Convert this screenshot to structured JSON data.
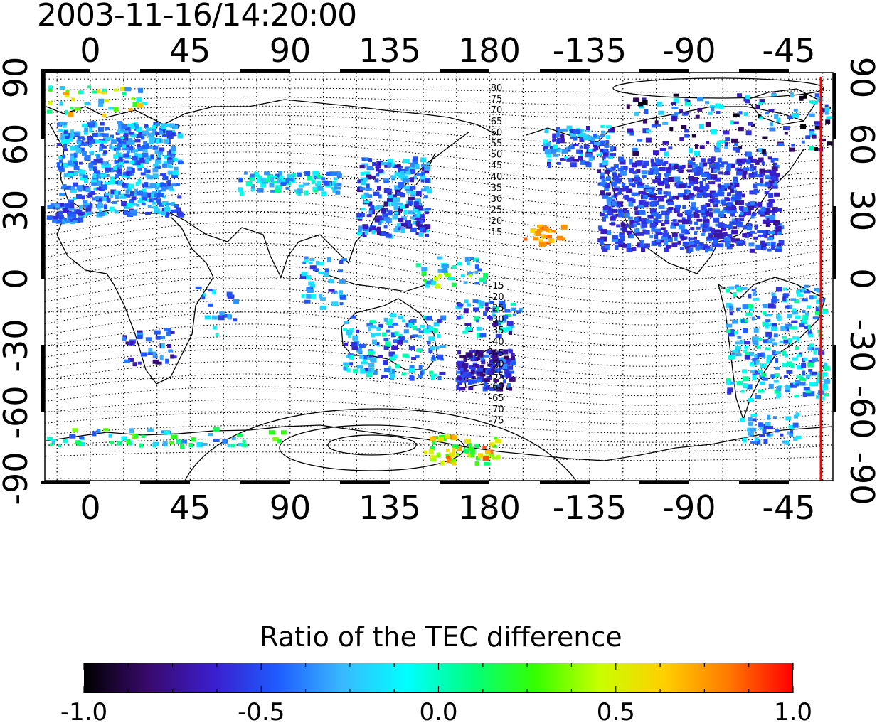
{
  "title": "2003-11-16/14:20:00",
  "map": {
    "top_lon_labels": [
      "0",
      "45",
      "90",
      "135",
      "180",
      "-135",
      "-90",
      "-45"
    ],
    "bottom_lon_labels": [
      "0",
      "45",
      "90",
      "135",
      "180",
      "-135",
      "-90",
      "-45"
    ],
    "left_lat_labels": [
      "90",
      "60",
      "30",
      "0",
      "-30",
      "-60",
      "-90"
    ],
    "right_lat_labels": [
      "90",
      "60",
      "30",
      "0",
      "-30",
      "-60",
      "-90"
    ],
    "mlat_labels_north": [
      "80",
      "75",
      "70",
      "65",
      "60",
      "55",
      "50",
      "45",
      "40",
      "35",
      "30",
      "25",
      "20",
      "15"
    ],
    "mlat_labels_south": [
      "-15",
      "-20",
      "-25",
      "-30",
      "-35",
      "-40",
      "-45",
      "-50",
      "-55",
      "-60",
      "-65",
      "-70",
      "-75"
    ],
    "terminator_color": "#ff0000"
  },
  "colorbar": {
    "title": "Ratio of the TEC difference",
    "tick_labels": [
      "-1.0",
      "-0.5",
      "0.0",
      "0.5",
      "1.0"
    ],
    "min": -1.0,
    "max": 1.0,
    "stops": [
      "#000000",
      "#3a0a6e",
      "#3b1ecd",
      "#1f5cff",
      "#39b8ff",
      "#00ffff",
      "#00ff80",
      "#33ff00",
      "#c8ff00",
      "#ffd000",
      "#ff7a00",
      "#ff0000"
    ]
  }
}
